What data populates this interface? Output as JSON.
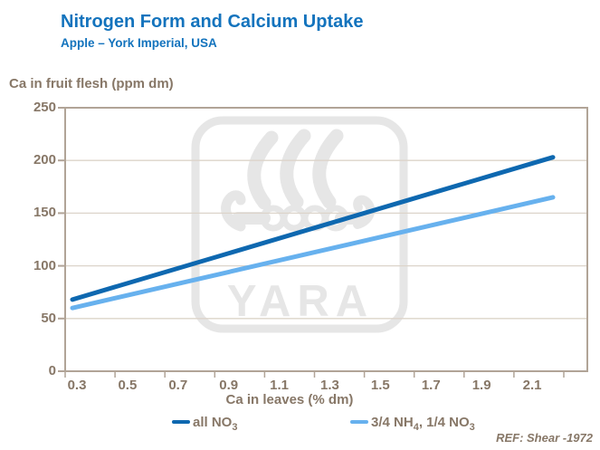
{
  "header": {
    "title": "Nitrogen Form and Calcium Uptake",
    "subtitle": "Apple – York Imperial, USA"
  },
  "watermark": {
    "label": "YARA"
  },
  "footer": {
    "reference": "REF: Shear -1972"
  },
  "colors": {
    "title_blue": "#1373bd",
    "text_brown": "#877767",
    "frame": "#b1a497",
    "grid": "#dcd4ca",
    "watermark_gray": "#e6e6e6"
  },
  "legend": {
    "items": [
      {
        "name": "all NO3",
        "p1": "all NO",
        "s1": "3",
        "p2": "",
        "s2": "",
        "color": "#0e68b0"
      },
      {
        "name": "3/4 NH4, 1/4 NO3",
        "p1": "3/4 NH",
        "s1": "4",
        "p2": ", 1/4 NO",
        "s2": "3",
        "color": "#67b1ee"
      }
    ]
  },
  "chart_data": {
    "type": "line",
    "title": "Nitrogen Form and Calcium Uptake",
    "subtitle": "Apple – York Imperial, USA",
    "xlabel": "Ca in leaves (% dm)",
    "ylabel": "Ca in fruit flesh (ppm dm)",
    "xlim": [
      0.27,
      2.34
    ],
    "ylim": [
      0,
      250
    ],
    "x_ticks": [
      0.3,
      0.5,
      0.7,
      0.9,
      1.1,
      1.3,
      1.5,
      1.7,
      1.9,
      2.1
    ],
    "y_ticks": [
      0,
      50,
      100,
      150,
      200,
      250
    ],
    "grid": "horizontal",
    "legend_position": "bottom",
    "series": [
      {
        "name": "all NO3",
        "color": "#0e68b0",
        "x": [
          0.3,
          2.2
        ],
        "y": [
          68,
          203
        ]
      },
      {
        "name": "3/4 NH4, 1/4 NO3",
        "color": "#67b1ee",
        "x": [
          0.3,
          2.2
        ],
        "y": [
          60,
          165
        ]
      }
    ]
  }
}
